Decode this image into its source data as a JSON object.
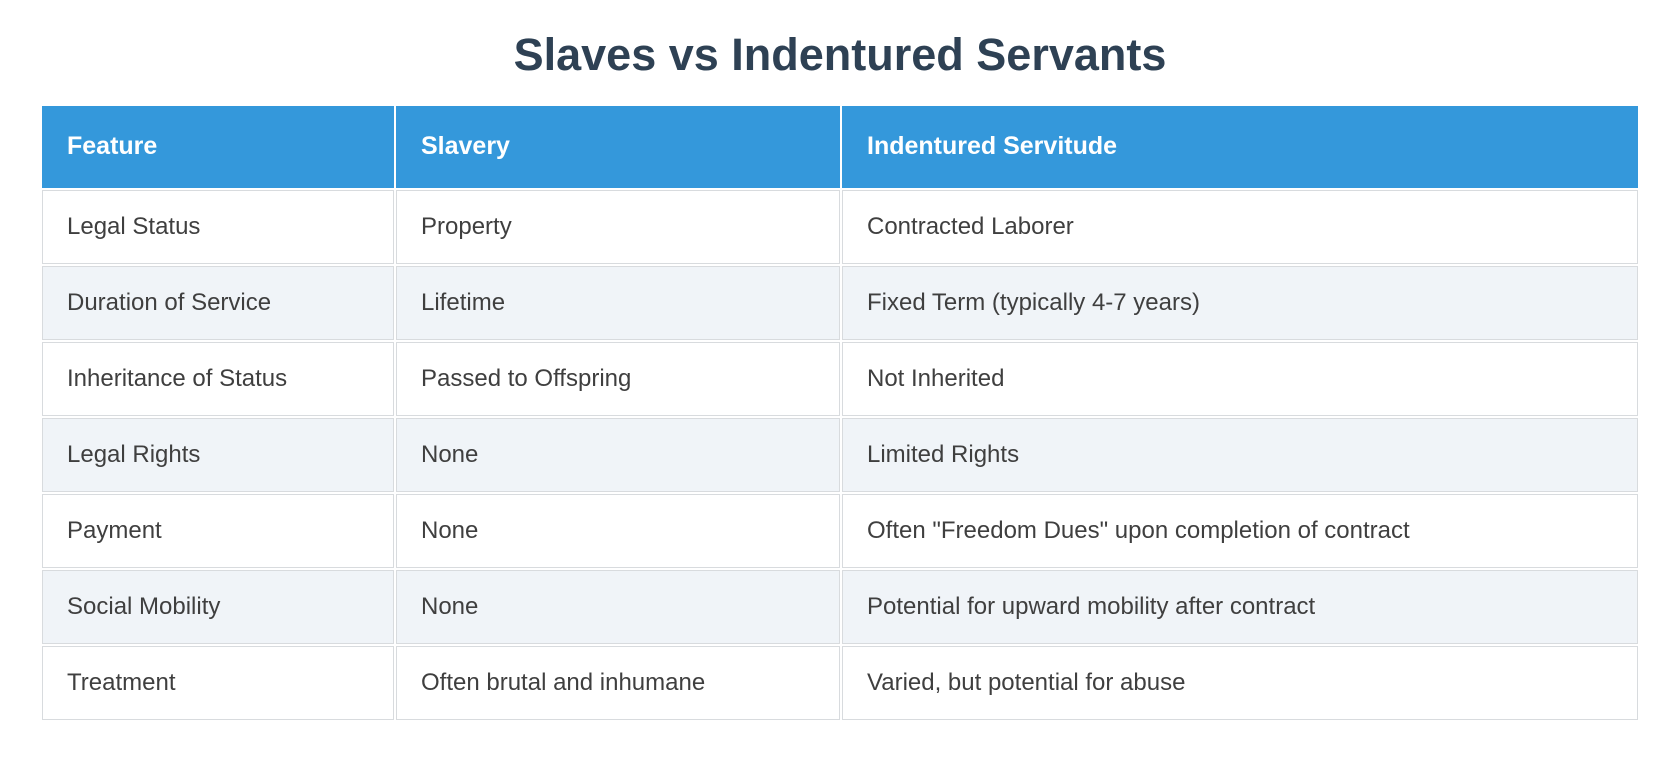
{
  "title": "Slaves vs Indentured Servants",
  "table": {
    "columns": [
      "Feature",
      "Slavery",
      "Indentured Servitude"
    ],
    "rows": [
      [
        "Legal Status",
        "Property",
        "Contracted Laborer"
      ],
      [
        "Duration of Service",
        "Lifetime",
        "Fixed Term (typically 4-7 years)"
      ],
      [
        "Inheritance of Status",
        "Passed to Offspring",
        "Not Inherited"
      ],
      [
        "Legal Rights",
        "None",
        "Limited Rights"
      ],
      [
        "Payment",
        "None",
        "Often \"Freedom Dues\" upon completion of contract"
      ],
      [
        "Social Mobility",
        "None",
        "Potential for upward mobility after contract"
      ],
      [
        "Treatment",
        "Often brutal and inhumane",
        "Varied, but potential for abuse"
      ]
    ]
  },
  "colors": {
    "header_bg": "#3498db",
    "header_text": "#ffffff",
    "row_bg": "#ffffff",
    "row_alt_bg": "#f0f4f8",
    "border": "#d8dbde",
    "title_text": "#2e4154",
    "body_text": "#3f3f3f"
  }
}
